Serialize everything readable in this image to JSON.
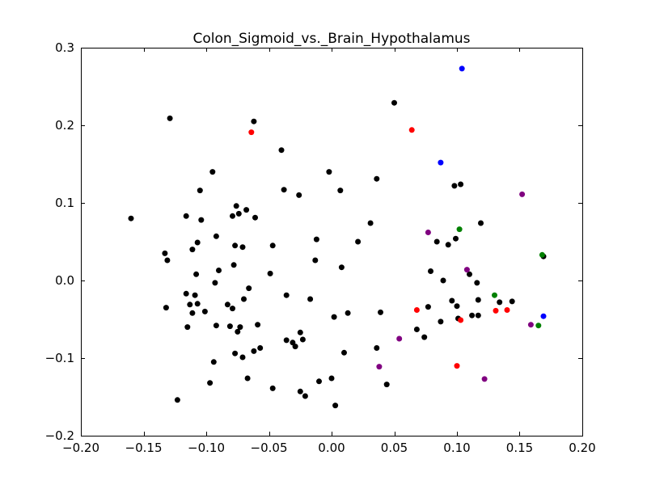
{
  "chart_data": {
    "type": "scatter",
    "title": "Colon_Sigmoid_vs._Brain_Hypothalamus",
    "xlabel": "",
    "ylabel": "",
    "xlim": [
      -0.2,
      0.2
    ],
    "ylim": [
      -0.2,
      0.3
    ],
    "xticks": [
      -0.2,
      -0.15,
      -0.1,
      -0.05,
      0.0,
      0.05,
      0.1,
      0.15,
      0.2
    ],
    "yticks": [
      -0.2,
      -0.1,
      0.0,
      0.1,
      0.2,
      0.3
    ],
    "xtick_labels": [
      "−0.20",
      "−0.15",
      "−0.10",
      "−0.05",
      "0.00",
      "0.05",
      "0.10",
      "0.15",
      "0.20"
    ],
    "ytick_labels": [
      "−0.2",
      "−0.1",
      "0.0",
      "0.1",
      "0.2",
      "0.3"
    ],
    "grid": false,
    "series": [
      {
        "color": "#000000",
        "points": [
          [
            -0.16,
            0.08
          ],
          [
            -0.129,
            0.209
          ],
          [
            -0.133,
            0.035
          ],
          [
            -0.131,
            0.026
          ],
          [
            -0.132,
            -0.035
          ],
          [
            -0.123,
            -0.154
          ],
          [
            -0.116,
            0.083
          ],
          [
            -0.116,
            -0.017
          ],
          [
            -0.115,
            -0.06
          ],
          [
            -0.113,
            -0.031
          ],
          [
            -0.111,
            0.04
          ],
          [
            -0.111,
            -0.042
          ],
          [
            -0.109,
            -0.019
          ],
          [
            -0.108,
            0.008
          ],
          [
            -0.107,
            0.049
          ],
          [
            -0.107,
            -0.03
          ],
          [
            -0.105,
            0.116
          ],
          [
            -0.104,
            0.078
          ],
          [
            -0.101,
            -0.04
          ],
          [
            -0.097,
            -0.132
          ],
          [
            -0.095,
            0.14
          ],
          [
            -0.094,
            -0.105
          ],
          [
            -0.093,
            -0.003
          ],
          [
            -0.092,
            0.057
          ],
          [
            -0.092,
            -0.058
          ],
          [
            -0.09,
            0.013
          ],
          [
            -0.083,
            -0.031
          ],
          [
            -0.081,
            -0.059
          ],
          [
            -0.079,
            0.083
          ],
          [
            -0.079,
            -0.036
          ],
          [
            -0.078,
            0.02
          ],
          [
            -0.077,
            -0.094
          ],
          [
            -0.077,
            0.045
          ],
          [
            -0.076,
            0.096
          ],
          [
            -0.075,
            -0.066
          ],
          [
            -0.074,
            0.086
          ],
          [
            -0.073,
            -0.06
          ],
          [
            -0.071,
            0.043
          ],
          [
            -0.071,
            -0.099
          ],
          [
            -0.07,
            -0.024
          ],
          [
            -0.068,
            0.091
          ],
          [
            -0.067,
            -0.126
          ],
          [
            -0.066,
            -0.01
          ],
          [
            -0.062,
            0.205
          ],
          [
            -0.062,
            -0.091
          ],
          [
            -0.061,
            0.081
          ],
          [
            -0.059,
            -0.057
          ],
          [
            -0.057,
            -0.087
          ],
          [
            -0.049,
            0.009
          ],
          [
            -0.047,
            0.045
          ],
          [
            -0.047,
            -0.139
          ],
          [
            -0.04,
            0.168
          ],
          [
            -0.038,
            0.117
          ],
          [
            -0.036,
            -0.019
          ],
          [
            -0.036,
            -0.077
          ],
          [
            -0.031,
            -0.08
          ],
          [
            -0.029,
            -0.085
          ],
          [
            -0.026,
            0.11
          ],
          [
            -0.025,
            -0.067
          ],
          [
            -0.025,
            -0.143
          ],
          [
            -0.023,
            -0.076
          ],
          [
            -0.021,
            -0.149
          ],
          [
            -0.017,
            -0.024
          ],
          [
            -0.013,
            0.026
          ],
          [
            -0.012,
            0.053
          ],
          [
            -0.01,
            -0.13
          ],
          [
            -0.002,
            0.14
          ],
          [
            0.0,
            -0.126
          ],
          [
            0.002,
            -0.047
          ],
          [
            0.003,
            -0.161
          ],
          [
            0.007,
            0.116
          ],
          [
            0.008,
            0.017
          ],
          [
            0.01,
            -0.093
          ],
          [
            0.013,
            -0.042
          ],
          [
            0.021,
            0.05
          ],
          [
            0.031,
            0.074
          ],
          [
            0.036,
            0.131
          ],
          [
            0.036,
            -0.087
          ],
          [
            0.039,
            -0.041
          ],
          [
            0.044,
            -0.134
          ],
          [
            0.05,
            0.229
          ],
          [
            0.068,
            -0.063
          ],
          [
            0.074,
            -0.073
          ],
          [
            0.077,
            -0.034
          ],
          [
            0.079,
            0.012
          ],
          [
            0.084,
            0.05
          ],
          [
            0.087,
            -0.053
          ],
          [
            0.089,
            0.0
          ],
          [
            0.093,
            0.046
          ],
          [
            0.096,
            -0.026
          ],
          [
            0.098,
            0.122
          ],
          [
            0.099,
            0.054
          ],
          [
            0.1,
            -0.033
          ],
          [
            0.101,
            -0.049
          ],
          [
            0.103,
            0.124
          ],
          [
            0.11,
            0.008
          ],
          [
            0.112,
            -0.045
          ],
          [
            0.116,
            -0.003
          ],
          [
            0.117,
            -0.025
          ],
          [
            0.117,
            -0.045
          ],
          [
            0.119,
            0.074
          ],
          [
            0.134,
            -0.028
          ],
          [
            0.144,
            -0.027
          ],
          [
            0.169,
            0.031
          ]
        ]
      },
      {
        "color": "#ff0000",
        "points": [
          [
            -0.064,
            0.191
          ],
          [
            0.064,
            0.194
          ],
          [
            0.068,
            -0.038
          ],
          [
            0.1,
            -0.11
          ],
          [
            0.103,
            -0.051
          ],
          [
            0.131,
            -0.039
          ],
          [
            0.14,
            -0.038
          ]
        ]
      },
      {
        "color": "#0000ff",
        "points": [
          [
            0.104,
            0.273
          ],
          [
            0.087,
            0.152
          ],
          [
            0.169,
            -0.046
          ]
        ]
      },
      {
        "color": "#008000",
        "points": [
          [
            0.102,
            0.066
          ],
          [
            0.13,
            -0.019
          ],
          [
            0.165,
            -0.058
          ],
          [
            0.168,
            0.033
          ]
        ]
      },
      {
        "color": "#800080",
        "points": [
          [
            0.077,
            0.062
          ],
          [
            0.108,
            0.014
          ],
          [
            0.152,
            0.111
          ],
          [
            0.159,
            -0.057
          ],
          [
            0.122,
            -0.127
          ],
          [
            0.054,
            -0.075
          ],
          [
            0.038,
            -0.111
          ]
        ]
      }
    ]
  }
}
